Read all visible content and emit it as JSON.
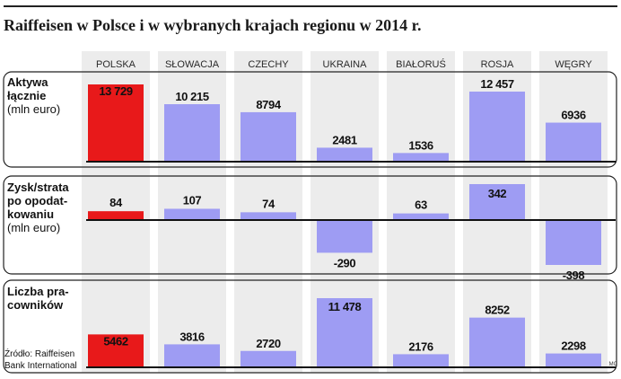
{
  "title": "Raiffeisen w Polsce i w wybranych krajach regionu w 2014 r.",
  "source_line1": "Źródło: Raiffeisen",
  "source_line2": "Bank International",
  "credit": "MC",
  "colors": {
    "highlight": "#e8191a",
    "bar": "#9e9cf3",
    "column_bg": "#ececec",
    "axis": "#111111"
  },
  "chart_data": {
    "type": "bar",
    "categories": [
      "POLSKA",
      "SŁOWACJA",
      "CZECHY",
      "UKRAINA",
      "BIAŁORUŚ",
      "ROSJA",
      "WĘGRY"
    ],
    "highlight_category": "POLSKA",
    "panels": [
      {
        "label_lines": [
          "Aktywa",
          "łącznie"
        ],
        "unit_lines": [
          "(mln euro)"
        ],
        "values": [
          13729,
          10215,
          8794,
          2481,
          1536,
          12457,
          6936
        ],
        "value_labels": [
          "13 729",
          "10 215",
          "8794",
          "2481",
          "1536",
          "12 457",
          "6936"
        ]
      },
      {
        "label_lines": [
          "Zysk/strata",
          "po opodat-",
          "kowaniu"
        ],
        "unit_lines": [
          "(mln euro)"
        ],
        "values": [
          84,
          107,
          74,
          -290,
          63,
          342,
          -398
        ],
        "value_labels": [
          "84",
          "107",
          "74",
          "-290",
          "63",
          "342",
          "-398"
        ]
      },
      {
        "label_lines": [
          "Liczba pra-",
          "cowników"
        ],
        "unit_lines": [],
        "values": [
          5462,
          3816,
          2720,
          11478,
          2176,
          8252,
          2298
        ],
        "value_labels": [
          "5462",
          "3816",
          "2720",
          "11 478",
          "2176",
          "8252",
          "2298"
        ]
      }
    ]
  }
}
